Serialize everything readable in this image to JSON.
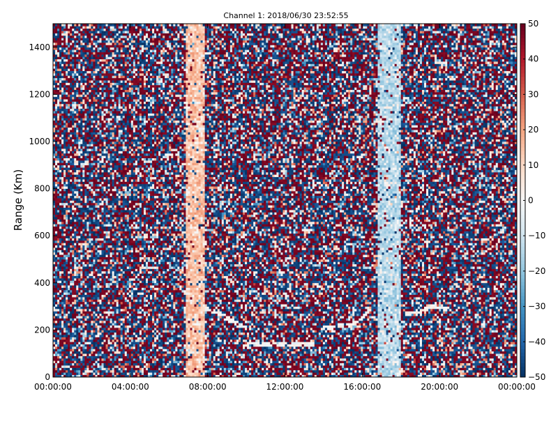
{
  "chart_data": {
    "type": "heatmap",
    "title": "Channel 1: 2018/06/30 23:52:55",
    "xlabel": "",
    "ylabel": "Range (Km)",
    "x_range": [
      "00:00:00",
      "24:00:00"
    ],
    "xticks": [
      "00:00:00",
      "04:00:00",
      "08:00:00",
      "12:00:00",
      "16:00:00",
      "20:00:00",
      "00:00:00"
    ],
    "ylim": [
      0,
      1500
    ],
    "yticks": [
      0,
      200,
      400,
      600,
      800,
      1000,
      1200,
      1400
    ],
    "colorbar": {
      "range": [
        -50,
        50
      ],
      "ticks": [
        -50,
        -40,
        -30,
        -20,
        -10,
        0,
        10,
        20,
        30,
        40,
        50
      ],
      "colormap": "RdBu_r"
    },
    "features": [
      {
        "kind": "vertical-band",
        "x_start": "06:50",
        "x_end": "07:50",
        "value": 15
      },
      {
        "kind": "vertical-band",
        "x_start": "16:50",
        "x_end": "18:00",
        "value": -15
      },
      {
        "kind": "echo-trace",
        "points": [
          [
            "07:50",
            290
          ],
          [
            "08:40",
            270
          ],
          [
            "09:30",
            230
          ],
          [
            "10:00",
            210
          ]
        ],
        "value": 0
      },
      {
        "kind": "echo-trace",
        "points": [
          [
            "14:00",
            210
          ],
          [
            "15:20",
            220
          ],
          [
            "16:00",
            250
          ],
          [
            "16:30",
            300
          ]
        ],
        "value": 0
      },
      {
        "kind": "echo-trace",
        "points": [
          [
            "18:10",
            270
          ],
          [
            "19:00",
            280
          ],
          [
            "19:40",
            300
          ],
          [
            "20:30",
            290
          ]
        ],
        "value": 0
      },
      {
        "kind": "echo-trace",
        "points": [
          [
            "10:00",
            140
          ],
          [
            "11:30",
            140
          ],
          [
            "13:30",
            140
          ]
        ],
        "value": 0
      }
    ]
  }
}
